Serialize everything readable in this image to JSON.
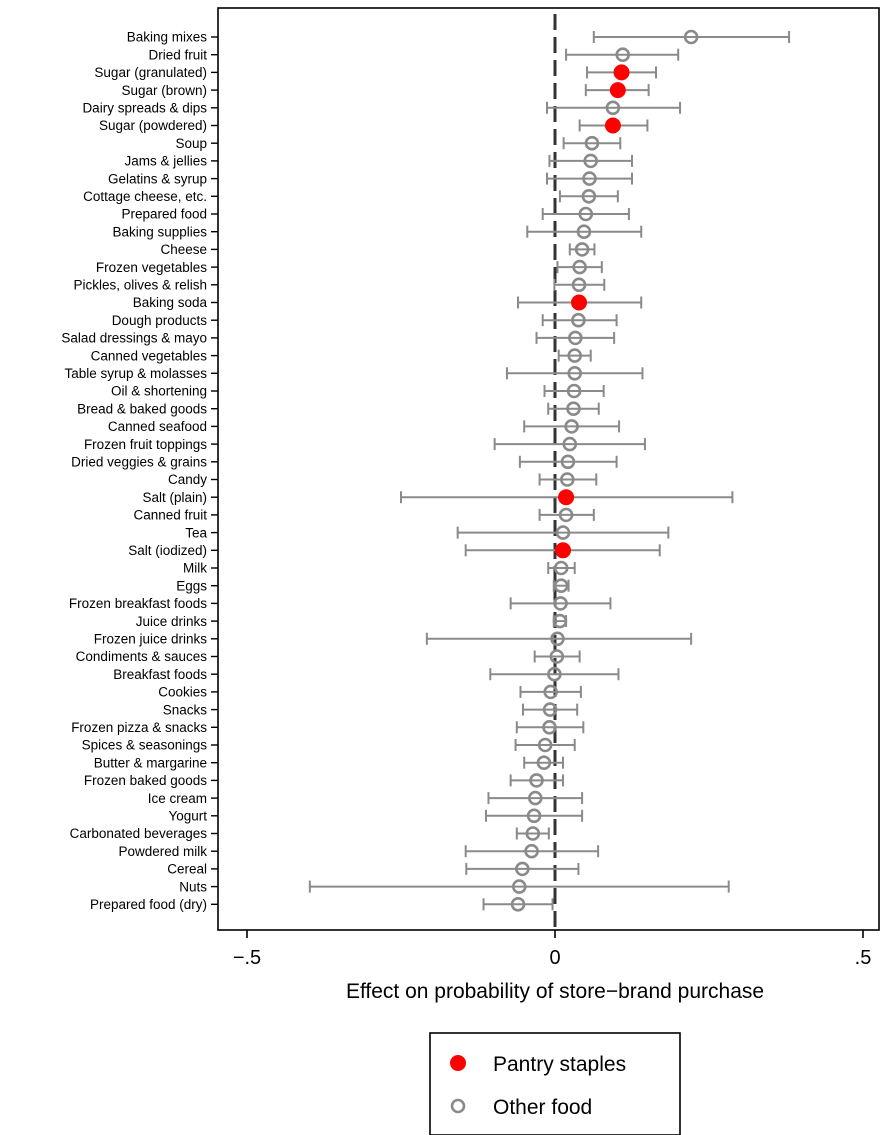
{
  "chart_data": {
    "type": "scatter",
    "xlabel": "Effect on probability of store−brand purchase",
    "xlim": [
      -0.5,
      0.52
    ],
    "x_ticks": [
      {
        "value": -0.5,
        "label": "−.5"
      },
      {
        "value": 0,
        "label": "0"
      },
      {
        "value": 0.5,
        "label": ".5"
      }
    ],
    "reference_line": {
      "x": 0,
      "style": "dashed"
    },
    "grid": false,
    "legend_position": "bottom",
    "legend": [
      {
        "name": "Pantry staples",
        "color": "#ff0000",
        "marker": "filled-circle"
      },
      {
        "name": "Other food",
        "color": "#8a8a8a",
        "marker": "hollow-circle"
      }
    ],
    "colors": {
      "pantry": "#ff0000",
      "other": "#8a8a8a",
      "zero_line": "#333333"
    },
    "categories": [
      {
        "label": "Baking mixes",
        "est": 0.221,
        "lo": 0.063,
        "hi": 0.38,
        "group": "other"
      },
      {
        "label": "Dried fruit",
        "est": 0.11,
        "lo": 0.018,
        "hi": 0.2,
        "group": "other"
      },
      {
        "label": "Sugar (granulated)",
        "est": 0.108,
        "lo": 0.052,
        "hi": 0.164,
        "group": "pantry"
      },
      {
        "label": "Sugar (brown)",
        "est": 0.102,
        "lo": 0.05,
        "hi": 0.152,
        "group": "pantry"
      },
      {
        "label": "Dairy spreads & dips",
        "est": 0.094,
        "lo": -0.013,
        "hi": 0.203,
        "group": "other"
      },
      {
        "label": "Sugar (powdered)",
        "est": 0.094,
        "lo": 0.04,
        "hi": 0.15,
        "group": "pantry"
      },
      {
        "label": "Soup",
        "est": 0.06,
        "lo": 0.014,
        "hi": 0.106,
        "group": "other"
      },
      {
        "label": "Jams & jellies",
        "est": 0.058,
        "lo": -0.009,
        "hi": 0.125,
        "group": "other"
      },
      {
        "label": "Gelatins & syrup",
        "est": 0.056,
        "lo": -0.013,
        "hi": 0.125,
        "group": "other"
      },
      {
        "label": "Cottage cheese, etc.",
        "est": 0.055,
        "lo": 0.008,
        "hi": 0.102,
        "group": "other"
      },
      {
        "label": "Prepared food",
        "est": 0.05,
        "lo": -0.02,
        "hi": 0.12,
        "group": "other"
      },
      {
        "label": "Baking supplies",
        "est": 0.047,
        "lo": -0.045,
        "hi": 0.14,
        "group": "other"
      },
      {
        "label": "Cheese",
        "est": 0.044,
        "lo": 0.024,
        "hi": 0.064,
        "group": "other"
      },
      {
        "label": "Frozen vegetables",
        "est": 0.04,
        "lo": 0.004,
        "hi": 0.076,
        "group": "other"
      },
      {
        "label": "Pickles, olives & relish",
        "est": 0.039,
        "lo": -0.001,
        "hi": 0.08,
        "group": "other"
      },
      {
        "label": "Baking soda",
        "est": 0.039,
        "lo": -0.06,
        "hi": 0.14,
        "group": "pantry"
      },
      {
        "label": "Dough products",
        "est": 0.038,
        "lo": -0.02,
        "hi": 0.1,
        "group": "other"
      },
      {
        "label": "Salad dressings & mayo",
        "est": 0.033,
        "lo": -0.03,
        "hi": 0.096,
        "group": "other"
      },
      {
        "label": "Canned vegetables",
        "est": 0.032,
        "lo": 0.006,
        "hi": 0.058,
        "group": "other"
      },
      {
        "label": "Table syrup & molasses",
        "est": 0.032,
        "lo": -0.078,
        "hi": 0.142,
        "group": "other"
      },
      {
        "label": "Oil & shortening",
        "est": 0.031,
        "lo": -0.017,
        "hi": 0.079,
        "group": "other"
      },
      {
        "label": "Bread & baked goods",
        "est": 0.03,
        "lo": -0.011,
        "hi": 0.071,
        "group": "other"
      },
      {
        "label": "Canned seafood",
        "est": 0.027,
        "lo": -0.05,
        "hi": 0.104,
        "group": "other"
      },
      {
        "label": "Frozen fruit toppings",
        "est": 0.024,
        "lo": -0.098,
        "hi": 0.146,
        "group": "other"
      },
      {
        "label": "Dried veggies & grains",
        "est": 0.021,
        "lo": -0.057,
        "hi": 0.1,
        "group": "other"
      },
      {
        "label": "Candy",
        "est": 0.02,
        "lo": -0.025,
        "hi": 0.067,
        "group": "other"
      },
      {
        "label": "Salt (plain)",
        "est": 0.018,
        "lo": -0.25,
        "hi": 0.288,
        "group": "pantry"
      },
      {
        "label": "Canned fruit",
        "est": 0.018,
        "lo": -0.025,
        "hi": 0.063,
        "group": "other"
      },
      {
        "label": "Tea",
        "est": 0.013,
        "lo": -0.158,
        "hi": 0.184,
        "group": "other"
      },
      {
        "label": "Salt (iodized)",
        "est": 0.013,
        "lo": -0.145,
        "hi": 0.17,
        "group": "pantry"
      },
      {
        "label": "Milk",
        "est": 0.01,
        "lo": -0.011,
        "hi": 0.032,
        "group": "other"
      },
      {
        "label": "Eggs",
        "est": 0.01,
        "lo": -0.002,
        "hi": 0.022,
        "group": "other"
      },
      {
        "label": "Frozen breakfast foods",
        "est": 0.009,
        "lo": -0.072,
        "hi": 0.09,
        "group": "other"
      },
      {
        "label": "Juice drinks",
        "est": 0.008,
        "lo": -0.002,
        "hi": 0.018,
        "group": "other"
      },
      {
        "label": "Frozen juice drinks",
        "est": 0.004,
        "lo": -0.208,
        "hi": 0.221,
        "group": "other"
      },
      {
        "label": "Condiments & sauces",
        "est": 0.003,
        "lo": -0.033,
        "hi": 0.04,
        "group": "other"
      },
      {
        "label": "Breakfast foods",
        "est": -0.001,
        "lo": -0.105,
        "hi": 0.103,
        "group": "other"
      },
      {
        "label": "Cookies",
        "est": -0.007,
        "lo": -0.056,
        "hi": 0.042,
        "group": "other"
      },
      {
        "label": "Snacks",
        "est": -0.008,
        "lo": -0.052,
        "hi": 0.036,
        "group": "other"
      },
      {
        "label": "Frozen pizza & snacks",
        "est": -0.009,
        "lo": -0.062,
        "hi": 0.046,
        "group": "other"
      },
      {
        "label": "Spices & seasonings",
        "est": -0.016,
        "lo": -0.064,
        "hi": 0.032,
        "group": "other"
      },
      {
        "label": "Butter & margarine",
        "est": -0.018,
        "lo": -0.05,
        "hi": 0.013,
        "group": "other"
      },
      {
        "label": "Frozen baked goods",
        "est": -0.03,
        "lo": -0.072,
        "hi": 0.013,
        "group": "other"
      },
      {
        "label": "Ice cream",
        "est": -0.032,
        "lo": -0.108,
        "hi": 0.044,
        "group": "other"
      },
      {
        "label": "Yogurt",
        "est": -0.034,
        "lo": -0.112,
        "hi": 0.044,
        "group": "other"
      },
      {
        "label": "Carbonated beverages",
        "est": -0.036,
        "lo": -0.062,
        "hi": -0.01,
        "group": "other"
      },
      {
        "label": "Powdered milk",
        "est": -0.038,
        "lo": -0.145,
        "hi": 0.07,
        "group": "other"
      },
      {
        "label": "Cereal",
        "est": -0.053,
        "lo": -0.144,
        "hi": 0.038,
        "group": "other"
      },
      {
        "label": "Nuts",
        "est": -0.058,
        "lo": -0.398,
        "hi": 0.282,
        "group": "other"
      },
      {
        "label": "Prepared food (dry)",
        "est": -0.06,
        "lo": -0.116,
        "hi": -0.004,
        "group": "other"
      }
    ]
  }
}
